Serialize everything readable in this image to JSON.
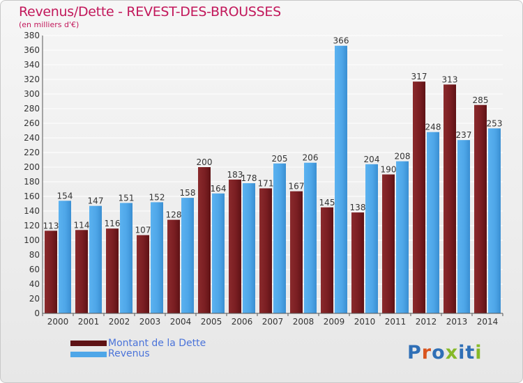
{
  "header": {
    "title": "Revenus/Dette - REVEST-DES-BROUSSES",
    "subtitle": "(en milliers d'€)"
  },
  "logo": {
    "text": "Proxiti",
    "letters": [
      "P",
      "r",
      "o",
      "x",
      "i",
      "t",
      "i"
    ]
  },
  "colors": {
    "dette": "#7a1e22",
    "revenus": "#4ea6e8",
    "title": "#c2185b",
    "legend_text": "#4a73d9",
    "logo_letters": [
      "#2f6fb6",
      "#d9541e",
      "#2f6fb6",
      "#86b928",
      "#2f6fb6",
      "#2f6fb6",
      "#86b928"
    ]
  },
  "chart_data": {
    "type": "bar",
    "title": "Revenus/Dette - REVEST-DES-BROUSSES",
    "ylabel": "(en milliers d'€)",
    "xlabel": "",
    "categories": [
      "2000",
      "2001",
      "2002",
      "2003",
      "2004",
      "2005",
      "2006",
      "2007",
      "2008",
      "2009",
      "2010",
      "2011",
      "2012",
      "2013",
      "2014"
    ],
    "series": [
      {
        "name": "Montant de la Dette",
        "values": [
          113,
          114,
          116,
          107,
          128,
          200,
          183,
          171,
          167,
          145,
          138,
          190,
          317,
          313,
          285
        ]
      },
      {
        "name": "Revenus",
        "values": [
          154,
          147,
          151,
          152,
          158,
          164,
          178,
          205,
          206,
          366,
          204,
          208,
          248,
          237,
          253
        ]
      }
    ],
    "ylim": [
      0,
      380
    ],
    "yticks": [
      0,
      20,
      40,
      60,
      80,
      100,
      120,
      140,
      160,
      180,
      200,
      220,
      240,
      260,
      280,
      300,
      320,
      340,
      360,
      380
    ],
    "grid": true,
    "legend_position": "bottom-left"
  }
}
